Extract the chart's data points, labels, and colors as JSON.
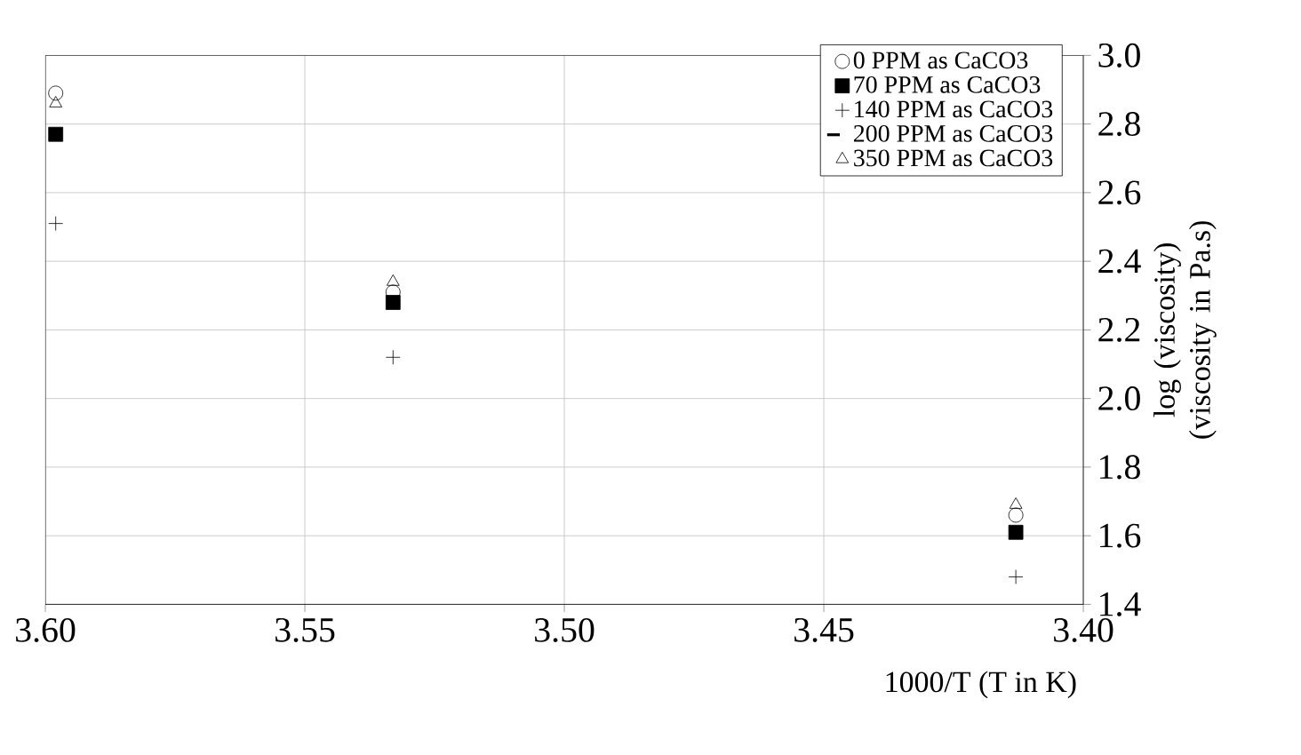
{
  "chart_data": {
    "type": "scatter",
    "xlabel": "1000/T  (T in K)",
    "ylabel": "log (viscosity)  (viscosity in Pa.s)",
    "x": [
      3.598,
      3.533,
      3.413
    ],
    "series": [
      {
        "name": "0 PPM as CaCO3",
        "color": "#000000",
        "marker": "circle",
        "values": [
          2.89,
          2.31,
          1.66
        ]
      },
      {
        "name": "70 PPM as CaCO3",
        "color": "#000000",
        "marker": "square",
        "values": [
          2.77,
          2.28,
          1.61
        ]
      },
      {
        "name": "140 PPM as CaCO3",
        "color": "#000000",
        "marker": "cross",
        "values": [
          2.51,
          2.12,
          1.48
        ]
      },
      {
        "name": "200 PPM as CaCO3",
        "color": "#000000",
        "type": "line",
        "marker": "none",
        "values": [
          null,
          null,
          null
        ]
      },
      {
        "name": "350 PPM as CaCO3",
        "color": "#000000",
        "marker": "triangle",
        "values": [
          2.86,
          2.34,
          1.69
        ]
      }
    ],
    "xlim": [
      3.6,
      3.4
    ],
    "xticks": [
      {
        "value": 3.6,
        "label": "3.60"
      },
      {
        "value": 3.55,
        "label": "3.55"
      },
      {
        "value": 3.5,
        "label": "3.50"
      },
      {
        "value": 3.45,
        "label": "3.45"
      },
      {
        "value": 3.4,
        "label": "3.40"
      }
    ],
    "ylim": [
      1.4,
      3.0
    ],
    "yticks": [
      {
        "value": 1.4,
        "label": "1.4"
      },
      {
        "value": 1.6,
        "label": "1.6"
      },
      {
        "value": 1.8,
        "label": "1.8"
      },
      {
        "value": 2.0,
        "label": "2.0"
      },
      {
        "value": 2.2,
        "label": "2.2"
      },
      {
        "value": 2.4,
        "label": "2.4"
      },
      {
        "value": 2.6,
        "label": "2.6"
      },
      {
        "value": 2.8,
        "label": "2.8"
      },
      {
        "value": 3.0,
        "label": "3.0"
      }
    ],
    "grid": true,
    "legend": "top right"
  }
}
